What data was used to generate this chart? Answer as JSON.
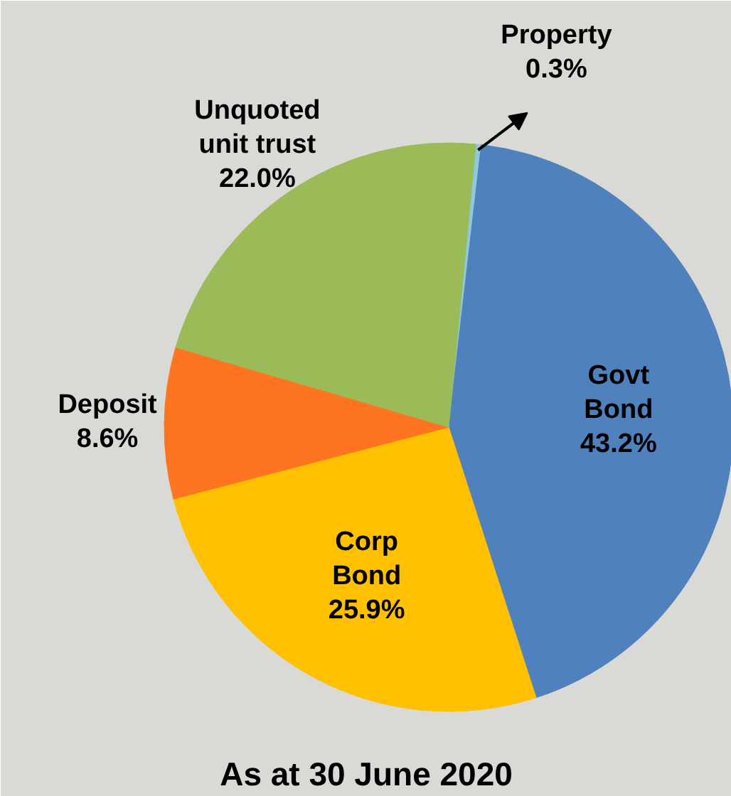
{
  "chart_data": {
    "type": "pie",
    "title": "As at 30 June 2020",
    "categories": [
      "Property",
      "Govt\nBond",
      "Corp\nBond",
      "Deposit",
      "Unquoted\nunit trust"
    ],
    "values": [
      0.3,
      43.2,
      25.9,
      8.6,
      22.0
    ],
    "colors": [
      "#8fc8e0",
      "#4f81bd",
      "#ffc000",
      "#ff7420",
      "#9bbb59"
    ],
    "value_labels": [
      "0.3%",
      "43.2%",
      "25.9%",
      "8.6%",
      "22.0%"
    ]
  }
}
